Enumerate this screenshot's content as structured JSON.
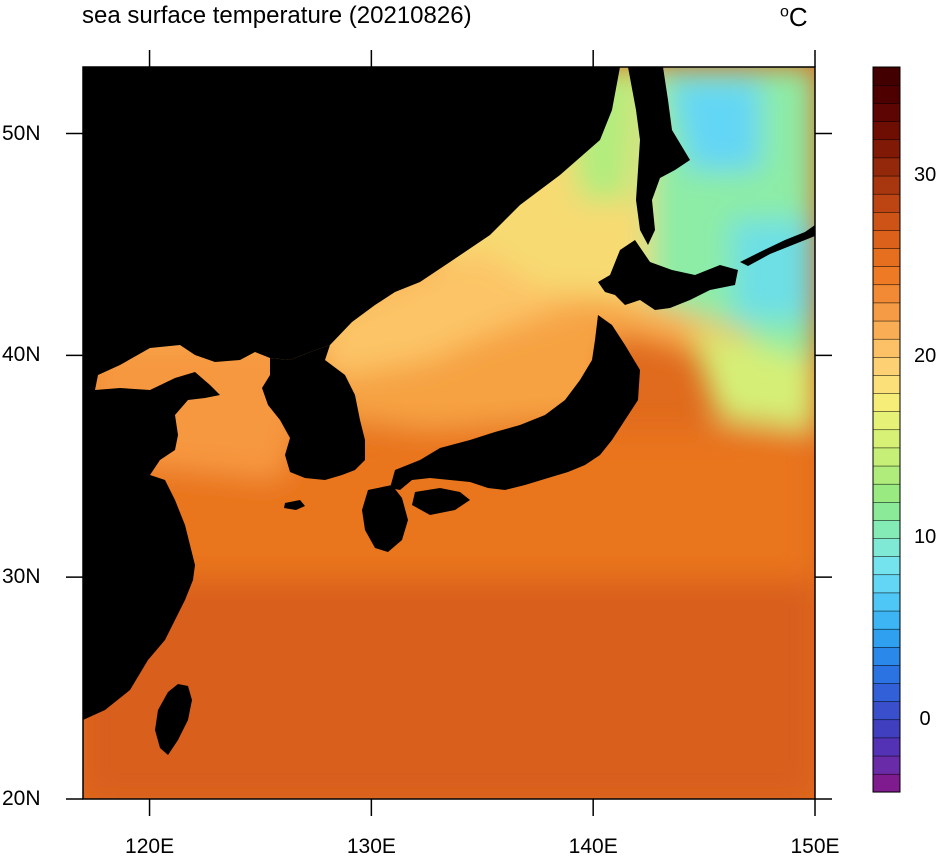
{
  "title": "sea surface temperature (20210826)",
  "unit": {
    "degree": "o",
    "letter": "C"
  },
  "map": {
    "lon_range": [
      117,
      150
    ],
    "lat_range": [
      20,
      53
    ],
    "x_ticks": [
      {
        "value": 120,
        "label": "120E"
      },
      {
        "value": 130,
        "label": "130E"
      },
      {
        "value": 140,
        "label": "140E"
      },
      {
        "value": 150,
        "label": "150E"
      }
    ],
    "y_ticks": [
      {
        "value": 20,
        "label": "20N"
      },
      {
        "value": 30,
        "label": "30N"
      },
      {
        "value": 40,
        "label": "40N"
      },
      {
        "value": 50,
        "label": "50N"
      }
    ],
    "land_color": "#000000"
  },
  "colorbar": {
    "min": -4,
    "max": 36,
    "step": 1,
    "labels": [
      {
        "value": 0,
        "label": "0"
      },
      {
        "value": 10,
        "label": "10"
      },
      {
        "value": 20,
        "label": "20"
      },
      {
        "value": 30,
        "label": "30"
      }
    ],
    "colors": [
      "#7f1a8f",
      "#6a2ba8",
      "#5432b5",
      "#3f3fbf",
      "#3a4fcc",
      "#3160d8",
      "#2b73e3",
      "#2a88ea",
      "#2f9ff0",
      "#3db4f3",
      "#4fc7f6",
      "#63d6f5",
      "#74e3ee",
      "#7fe9d5",
      "#85ebb6",
      "#8bea97",
      "#9aea82",
      "#b0ec7c",
      "#c6ef77",
      "#d7f176",
      "#e6f177",
      "#f5ed77",
      "#fbe07a",
      "#fdd173",
      "#fcc066",
      "#f9ae55",
      "#f59b45",
      "#f28a35",
      "#ee7a26",
      "#e66f1f",
      "#dc621b",
      "#cd5317",
      "#bc4513",
      "#a8360f",
      "#94280a",
      "#801906",
      "#6e0e03",
      "#5c0502",
      "#4e0000",
      "#420000"
    ]
  }
}
